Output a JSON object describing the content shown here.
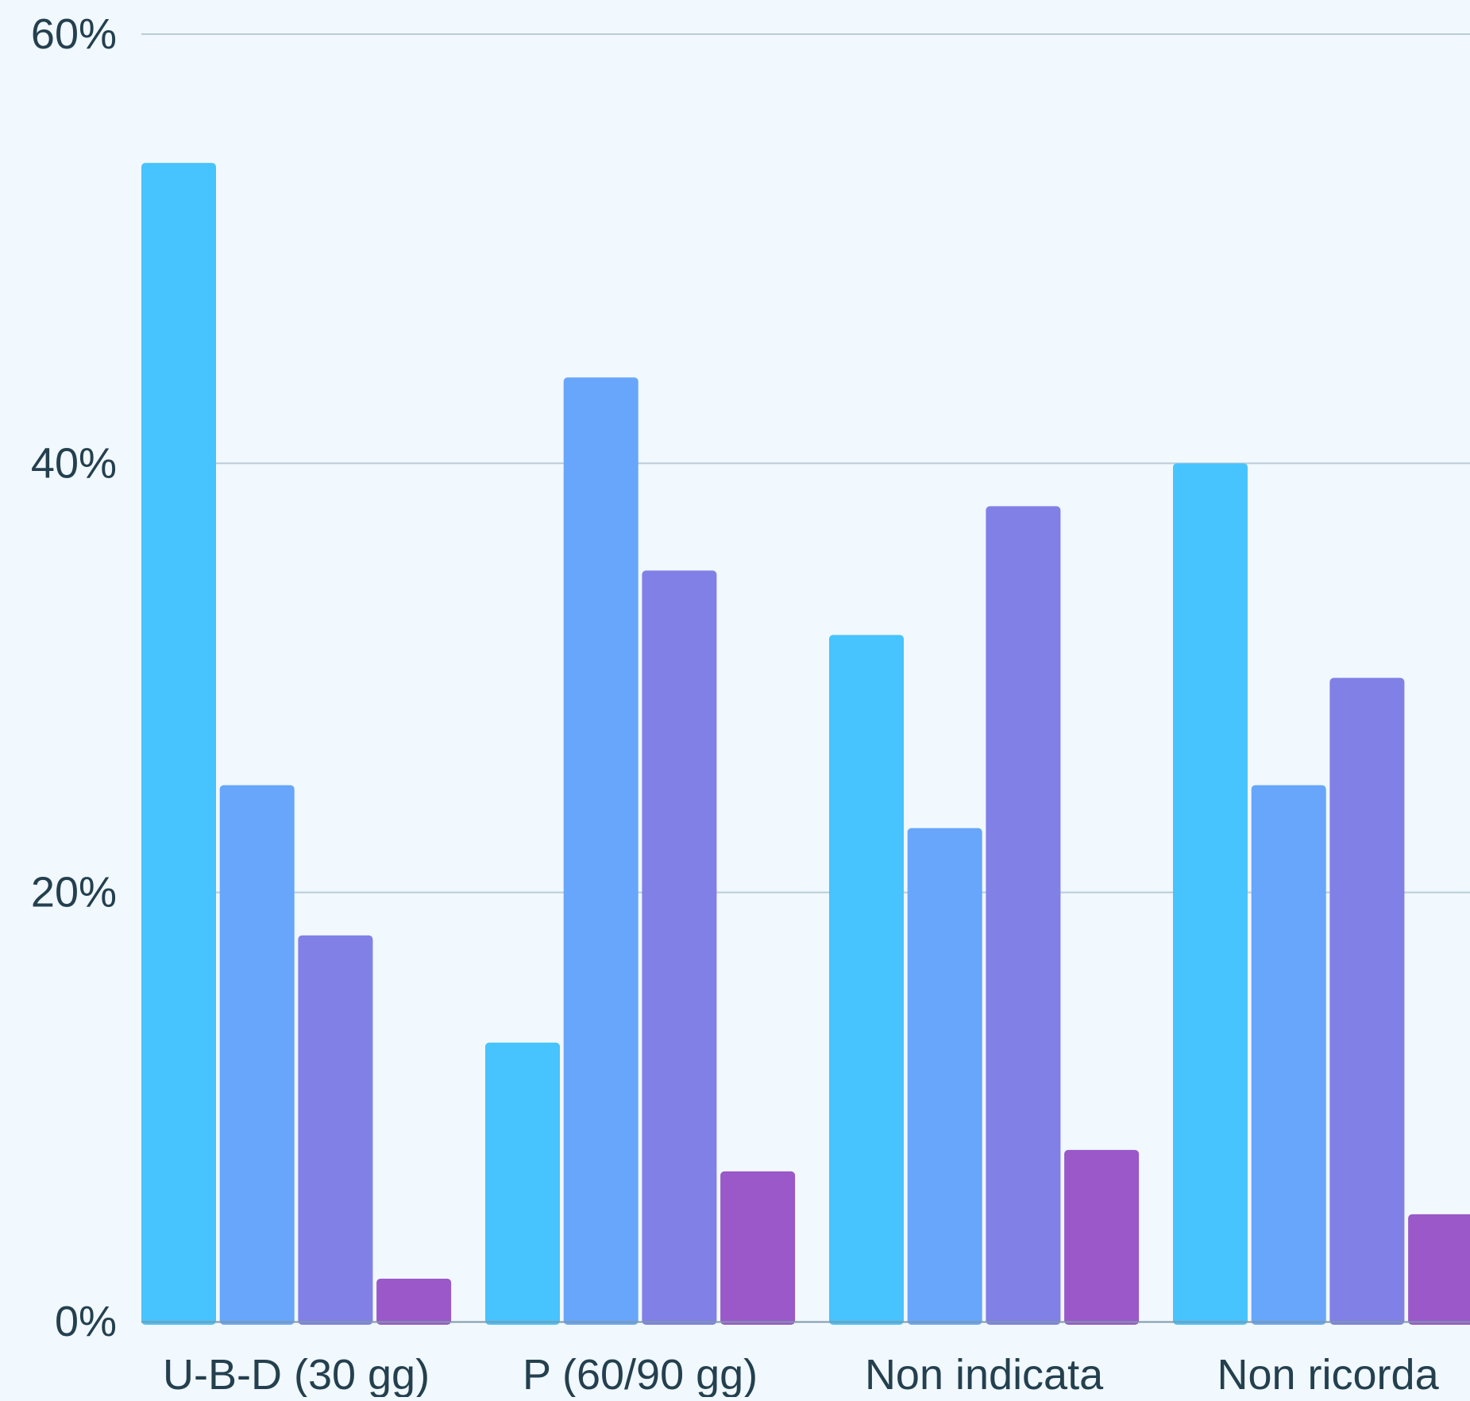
{
  "chart_data": {
    "type": "bar",
    "categories": [
      "U-B-D (30 gg)",
      "P (60/90 gg)",
      "Non indicata",
      "Non ricorda"
    ],
    "series": [
      {
        "color": "#47c3fe",
        "values": [
          54,
          13,
          32,
          40
        ]
      },
      {
        "color": "#67a6fa",
        "values": [
          25,
          44,
          23,
          25
        ]
      },
      {
        "color": "#8080e6",
        "values": [
          18,
          35,
          38,
          30
        ]
      },
      {
        "color": "#9a58c9",
        "values": [
          2,
          7,
          8,
          5
        ]
      }
    ],
    "y_ticks": [
      {
        "value": 0,
        "label": "0%"
      },
      {
        "value": 20,
        "label": "20%"
      },
      {
        "value": 40,
        "label": "40%"
      },
      {
        "value": 60,
        "label": "60%"
      }
    ],
    "ylim": [
      0,
      60
    ],
    "grid": true,
    "colors": {
      "background": "#f1f8fe",
      "grid": "#b9ccd6",
      "axis": "#7f98a8",
      "text": "#24404f"
    }
  }
}
